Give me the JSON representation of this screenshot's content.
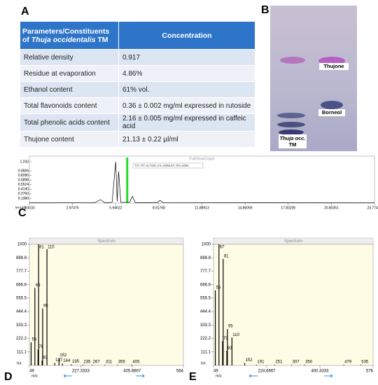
{
  "panels": [
    "A",
    "B",
    "C",
    "D",
    "E"
  ],
  "table": {
    "header": [
      [
        "Parameters/Constituents",
        "of ",
        "Thuja occidentalis",
        " TM"
      ],
      "Concentration"
    ],
    "rows": [
      [
        "Relative density",
        "0.917"
      ],
      [
        "Residue at evaporation",
        "4.86%"
      ],
      [
        "Ethanol content",
        "61% vol."
      ],
      [
        "Total flavonoids content",
        "0.36 ± 0.002 mg/ml  expressed in rutoside"
      ],
      [
        "Total phenolic acids content",
        "2.16 ± 0.005 mg/ml  expressed in caffeic acid"
      ],
      [
        "Thujone content",
        "21.13 ± 0.22 µl/ml"
      ]
    ]
  },
  "tlc": {
    "spots": [
      "Thujone",
      "Borneol"
    ],
    "lane_label": [
      "Thuja occ.",
      "TM"
    ]
  },
  "chromatogram": {
    "title": "FullViewGraph",
    "annotation": "TIC: RT=6.7416; Int.=5466.67; RH=4084",
    "marker_rt": 6.7416,
    "multiplier": "M×10^6",
    "xlim": [
      0.0033,
      23.77497
    ],
    "ylim": [
      0,
      1.242
    ],
    "xticks": [
      {
        "value": 0.0033,
        "label": "0.0033"
      },
      2.97476,
      5.94622,
      8.91768,
      11.88913,
      14.86059,
      17.83205,
      20.80351,
      23.77497
    ],
    "yticks": [
      {
        "value": 0.138,
        "label": "0.1380"
      },
      {
        "value": 0.276,
        "label": "0.2760"
      },
      {
        "value": 0.414,
        "label": "0.4140"
      },
      {
        "value": 0.5524,
        "label": "0.5524"
      },
      {
        "value": 0.6898,
        "label": "0.6898"
      },
      {
        "value": 0.828,
        "label": "0.8280"
      },
      {
        "value": 0.9666,
        "label": "0.9666"
      },
      1.242
    ],
    "x": [
      0.0033,
      4.5,
      4.9,
      5.2,
      5.7,
      5.95,
      6.05,
      6.15,
      6.3,
      6.9,
      7.1,
      7.3,
      8.8,
      9.0,
      9.2,
      23.77497
    ],
    "values": [
      0.005,
      0.01,
      0.1,
      0.01,
      0.02,
      1.242,
      0.05,
      0.95,
      0.02,
      0.02,
      0.2,
      0.01,
      0.01,
      0.08,
      0.01,
      0.005
    ]
  },
  "spectra": [
    {
      "title": "Spectrum",
      "xlabel": "m/z",
      "ylabel": "Int.",
      "xlim": [
        49,
        584
      ],
      "ylim": [
        0,
        1000
      ],
      "xticks": [
        49,
        {
          "value": 227.3333,
          "label": "227.3333"
        },
        {
          "value": 405.6667,
          "label": "405.6667"
        },
        584
      ],
      "yticks": [
        {
          "value": 111.1,
          "label": "111.1"
        },
        {
          "value": 222.2,
          "label": "222.2"
        },
        {
          "value": 333.3,
          "label": "333.3"
        },
        {
          "value": 444.4,
          "label": "444.4"
        },
        {
          "value": 555.5,
          "label": "555.5"
        },
        {
          "value": 666.6,
          "label": "666.6"
        },
        {
          "value": 777.7,
          "label": "777.7"
        },
        {
          "value": 888.8,
          "label": "888.8"
        },
        1000
      ],
      "mz": [
        55,
        68,
        79,
        81,
        93,
        95,
        110,
        137,
        152,
        164,
        195,
        235,
        267,
        311,
        355,
        405
      ],
      "intensity": [
        190,
        640,
        130,
        1000,
        40,
        470,
        960,
        20,
        60,
        15,
        8,
        6,
        5,
        5,
        5,
        5
      ]
    },
    {
      "title": "Spectrum",
      "xlabel": "m/z",
      "ylabel": "Int.",
      "xlim": [
        49,
        576
      ],
      "ylim": [
        0,
        1000
      ],
      "xticks": [
        49,
        {
          "value": 224.6667,
          "label": "224.6667"
        },
        {
          "value": 400.3333,
          "label": "400.3333"
        },
        576
      ],
      "yticks": [
        {
          "value": 111.1,
          "label": "111.1"
        },
        {
          "value": 222.2,
          "label": "222.2"
        },
        {
          "value": 333.3,
          "label": "333.3"
        },
        {
          "value": 444.4,
          "label": "444.4"
        },
        {
          "value": 555.5,
          "label": "555.5"
        },
        {
          "value": 666.6,
          "label": "666.6"
        },
        {
          "value": 777.7,
          "label": "777.7"
        },
        {
          "value": 888.8,
          "label": "888.8"
        },
        1000
      ],
      "mz": [
        55,
        67,
        79,
        81,
        93,
        95,
        110,
        152,
        191,
        251,
        307,
        350,
        479,
        535
      ],
      "intensity": [
        620,
        1000,
        200,
        880,
        120,
        300,
        230,
        20,
        5,
        5,
        5,
        5,
        5,
        5
      ]
    }
  ]
}
